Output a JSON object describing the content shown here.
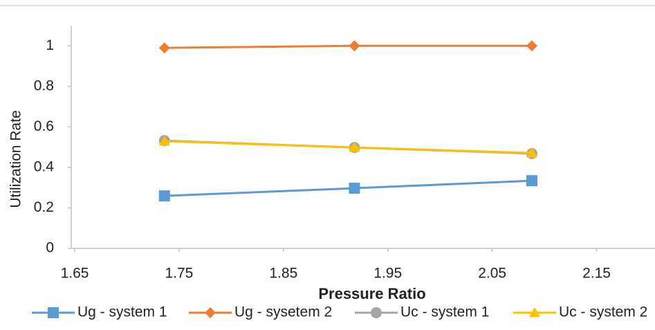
{
  "chart_data": {
    "type": "line",
    "x_label": "Pressure Ratio",
    "y_label": "Utilization Rate",
    "xlim": [
      1.65,
      2.2
    ],
    "xticks": [
      1.65,
      1.75,
      1.85,
      1.95,
      2.05,
      2.15
    ],
    "ylim": [
      0,
      1.1
    ],
    "yticks": [
      0,
      0.2,
      0.4,
      0.6,
      0.8,
      1
    ],
    "grid": false,
    "legend": "bottom",
    "x": [
      1.736,
      1.918,
      2.088
    ],
    "series": [
      {
        "name": "Ug - system 1",
        "color": "#5b9bd5",
        "marker": "square",
        "values": [
          0.259,
          0.297,
          0.334
        ]
      },
      {
        "name": "Ug - sysetem 2",
        "color": "#ed7d31",
        "marker": "diamond",
        "values": [
          0.99,
          1.0,
          1.0
        ]
      },
      {
        "name": "Uc - system 1",
        "color": "#a5a5a5",
        "marker": "circle",
        "values": [
          0.532,
          0.498,
          0.468
        ]
      },
      {
        "name": "Uc - system 2",
        "color": "#ffc000",
        "marker": "triangle",
        "values": [
          0.529,
          0.498,
          0.471
        ]
      }
    ]
  }
}
